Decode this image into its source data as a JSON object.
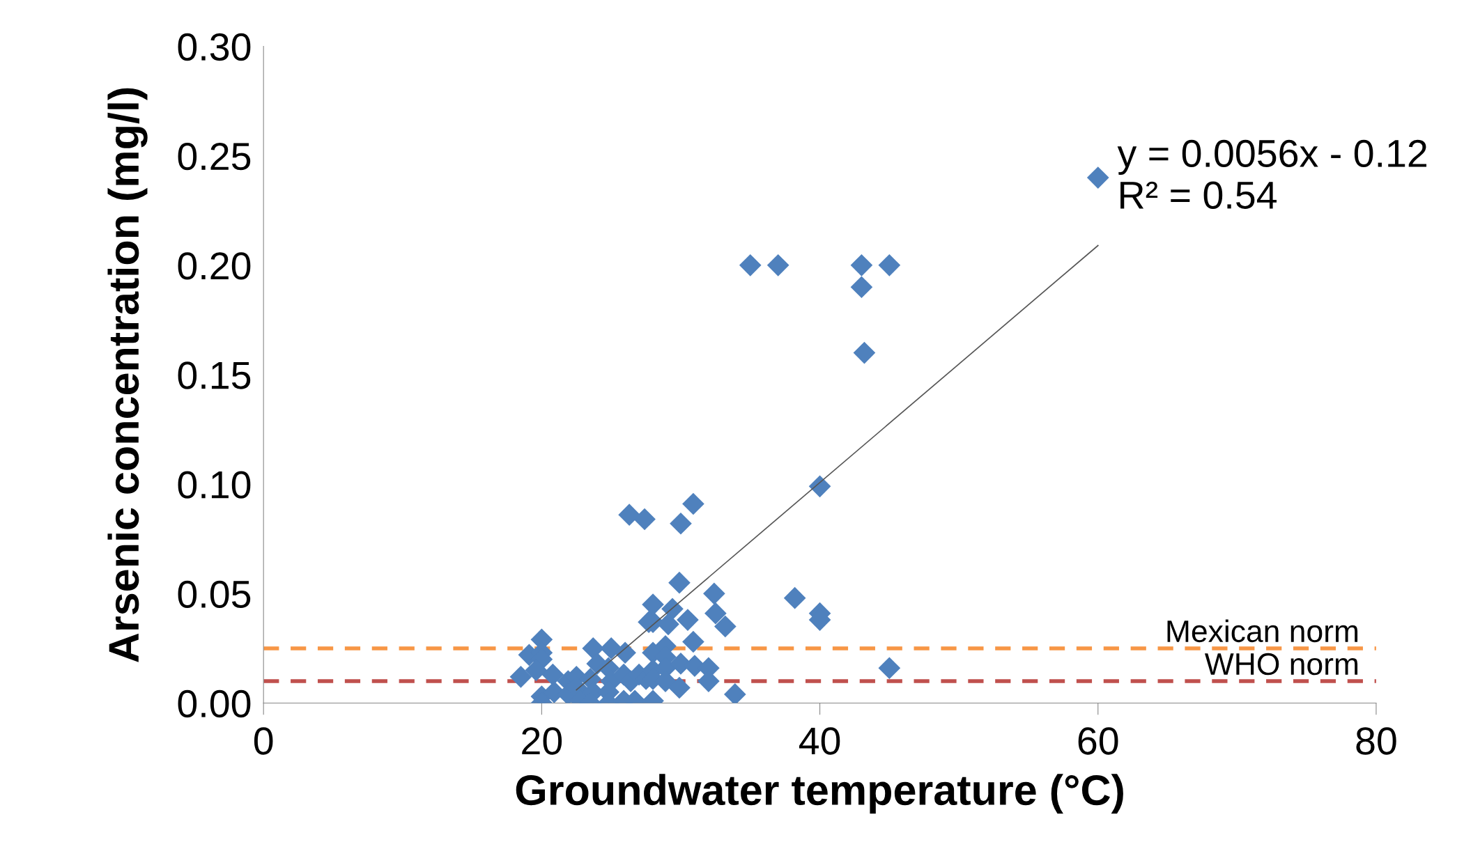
{
  "chart_data": {
    "type": "scatter",
    "xlabel": "Groundwater temperature (°C)",
    "ylabel": "Arsenic concentration (mg/l)",
    "xlim": [
      0,
      80
    ],
    "xticks": [
      0,
      20,
      40,
      60,
      80
    ],
    "ylim": [
      0,
      0.3
    ],
    "yticks": [
      {
        "value": 0,
        "label": "0.00"
      },
      {
        "value": 0.05,
        "label": "0.05"
      },
      {
        "value": 0.1,
        "label": "0.10"
      },
      {
        "value": 0.15,
        "label": "0.15"
      },
      {
        "value": 0.2,
        "label": "0.20"
      },
      {
        "value": 0.25,
        "label": "0.25"
      },
      {
        "value": 0.3,
        "label": "0.30"
      }
    ],
    "grid": false,
    "legend": false,
    "marker": "diamond",
    "series": [
      {
        "color": "#4f81bd",
        "x": [
          35,
          37,
          43,
          45,
          43,
          43.2,
          40,
          26.3,
          27.4,
          30.9,
          30,
          60,
          20,
          19.1,
          20,
          20,
          19.6,
          18.5,
          20.8,
          20,
          20,
          20.9,
          21.9,
          21.9,
          22.5,
          22.5,
          22.8,
          23.7,
          24,
          23.5,
          23.7,
          23.5,
          25,
          24.8,
          25,
          24.8,
          24.8,
          26,
          25.9,
          26.4,
          25.9,
          26.7,
          27,
          27.5,
          28,
          28,
          28,
          28,
          28.9,
          28.9,
          28.9,
          28.9,
          30,
          29.9,
          31,
          32,
          32,
          30.9,
          28,
          27.7,
          28,
          29.4,
          29.1,
          30.5,
          29.9,
          32.4,
          32.5,
          33.2,
          33.9,
          38.2,
          40,
          40,
          45
        ],
        "values": [
          0.2,
          0.2,
          0.2,
          0.2,
          0.19,
          0.16,
          0.099,
          0.086,
          0.084,
          0.091,
          0.082,
          0.24,
          0.029,
          0.022,
          0.023,
          0.02,
          0.015,
          0.012,
          0.013,
          0.003,
          0.0,
          0.005,
          0.01,
          0.004,
          0.012,
          0.007,
          0.001,
          0.025,
          0.018,
          0.011,
          0.005,
          0.0,
          0.025,
          0.016,
          0.01,
          0.005,
          0.0,
          0.023,
          0.013,
          0.01,
          0.001,
          0.001,
          0.013,
          0.011,
          0.023,
          0.015,
          0.011,
          0.001,
          0.026,
          0.021,
          0.016,
          0.01,
          0.018,
          0.007,
          0.017,
          0.016,
          0.01,
          0.028,
          0.037,
          0.037,
          0.045,
          0.043,
          0.036,
          0.038,
          0.055,
          0.05,
          0.041,
          0.035,
          0.004,
          0.048,
          0.041,
          0.038,
          0.016
        ]
      },
      {
        "type": "line",
        "color": "#555555",
        "marker": "none",
        "x": [
          22.5,
          60
        ],
        "values": [
          0.006,
          0.209
        ]
      }
    ],
    "ref_lines": [
      {
        "axis": "y",
        "value": 0.025,
        "label": "Mexican norm",
        "color": "#f79646",
        "line_style": "dashed"
      },
      {
        "axis": "y",
        "value": 0.01,
        "label": "WHO norm",
        "color": "#c0504d",
        "line_style": "dashed"
      }
    ],
    "annotations": [
      {
        "text": "y = 0.0056x - 0.12\nR² = 0.54",
        "x": 60,
        "y": 0.24
      }
    ]
  }
}
